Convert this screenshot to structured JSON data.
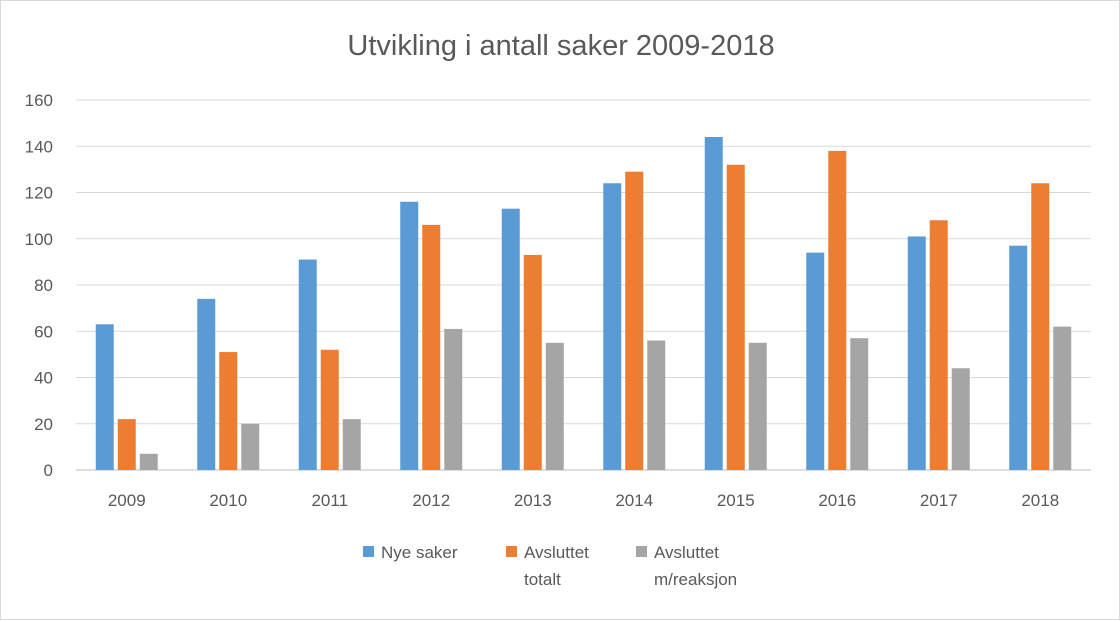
{
  "chart_data": {
    "type": "bar",
    "title": "Utvikling i antall saker 2009-2018",
    "categories": [
      "2009",
      "2010",
      "2011",
      "2012",
      "2013",
      "2014",
      "2015",
      "2016",
      "2017",
      "2018"
    ],
    "ylim": [
      0,
      160
    ],
    "yticks": [
      "0",
      "20",
      "40",
      "60",
      "80",
      "100",
      "120",
      "140",
      "160"
    ],
    "grid": true,
    "legend_position": "bottom",
    "series": [
      {
        "name": "Nye saker",
        "name_lines": [
          "Nye saker"
        ],
        "color": "#5B9BD5",
        "values": [
          63,
          74,
          91,
          116,
          113,
          124,
          144,
          94,
          101,
          97
        ]
      },
      {
        "name": "Avsluttet totalt",
        "name_lines": [
          "Avsluttet",
          "totalt"
        ],
        "color": "#ED7D31",
        "values": [
          22,
          51,
          52,
          106,
          93,
          129,
          132,
          138,
          108,
          124
        ]
      },
      {
        "name": "Avsluttet m/reaksjon",
        "name_lines": [
          "Avsluttet",
          "m/reaksjon"
        ],
        "color": "#A5A5A5",
        "values": [
          7,
          20,
          22,
          61,
          55,
          56,
          55,
          57,
          44,
          62
        ]
      }
    ]
  }
}
